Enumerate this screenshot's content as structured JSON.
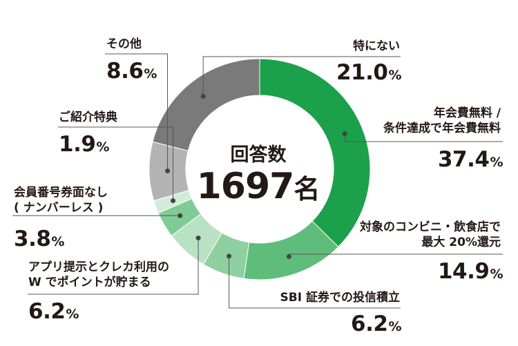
{
  "chart_data": {
    "type": "donut",
    "center": {
      "title": "回答数",
      "value": "1697",
      "unit": "名"
    },
    "slices": [
      {
        "label_lines": [
          "年会費無料 /",
          "条件達成で年会費無料"
        ],
        "value": 37.4,
        "color": "#1ba14b"
      },
      {
        "label_lines": [
          "対象のコンビニ・飲食店で",
          "最大 20%還元"
        ],
        "value": 14.9,
        "color": "#5fbd7c"
      },
      {
        "label_lines": [
          "SBI 証券での投信積立"
        ],
        "value": 6.2,
        "color": "#8ed09f"
      },
      {
        "label_lines": [
          "アプリ提示とクレカ利用の",
          "W でポイントが貯まる"
        ],
        "value": 6.2,
        "color": "#b9e2c4"
      },
      {
        "label_lines": [
          "会員番号券面なし",
          "( ナンバーレス )"
        ],
        "value": 3.8,
        "color": "#7fcb95"
      },
      {
        "label_lines": [
          "ご紹介特典"
        ],
        "value": 1.9,
        "color": "#d3ecd9"
      },
      {
        "label_lines": [
          "その他"
        ],
        "value": 8.6,
        "color": "#b3b3b3"
      },
      {
        "label_lines": [
          "特にない"
        ],
        "value": 21.0,
        "color": "#7a7a7a"
      }
    ],
    "value_suffix": "%"
  }
}
